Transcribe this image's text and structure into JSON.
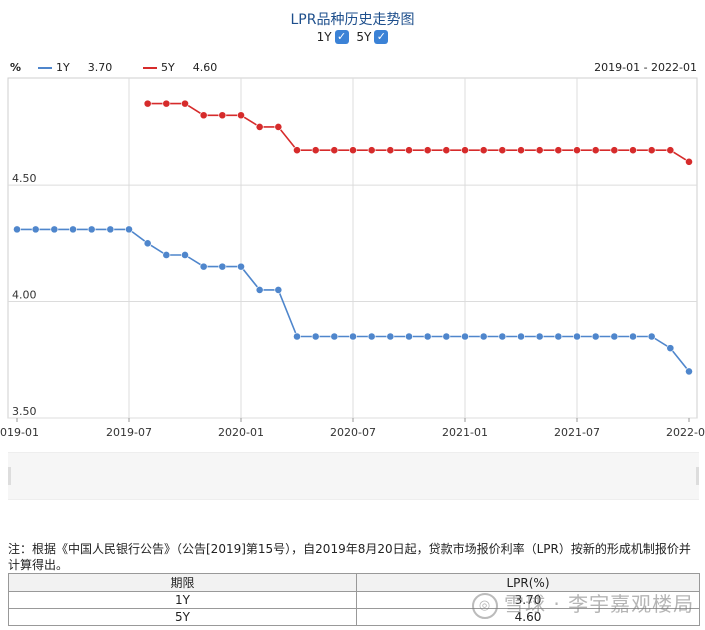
{
  "header": {
    "title": "LPR品种历史走势图",
    "toggles": [
      {
        "label": "1Y",
        "checked": true
      },
      {
        "label": "5Y",
        "checked": true
      }
    ]
  },
  "legend": {
    "unit": "%",
    "items": [
      {
        "name": "1Y",
        "value": "3.70",
        "color": "#4f86cc"
      },
      {
        "name": "5Y",
        "value": "4.60",
        "color": "#d62b2b"
      }
    ],
    "range": "2019-01 - 2022-01"
  },
  "chart_data": {
    "type": "line",
    "title": "LPR品种历史走势图",
    "xlabel": "",
    "ylabel": "%",
    "x_ticks": [
      "019-01",
      "2019-07",
      "2020-01",
      "2020-07",
      "2021-01",
      "2021-07",
      "2022-0"
    ],
    "y_ticks": [
      "3.50",
      "4.00",
      "4.50"
    ],
    "ylim": [
      3.5,
      4.96
    ],
    "x": [
      "2019-01",
      "2019-02",
      "2019-03",
      "2019-04",
      "2019-05",
      "2019-06",
      "2019-07",
      "2019-08",
      "2019-09",
      "2019-10",
      "2019-11",
      "2019-12",
      "2020-01",
      "2020-02",
      "2020-03",
      "2020-04",
      "2020-05",
      "2020-06",
      "2020-07",
      "2020-08",
      "2020-09",
      "2020-10",
      "2020-11",
      "2020-12",
      "2021-01",
      "2021-02",
      "2021-03",
      "2021-04",
      "2021-05",
      "2021-06",
      "2021-07",
      "2021-08",
      "2021-09",
      "2021-10",
      "2021-11",
      "2021-12",
      "2022-01"
    ],
    "series": [
      {
        "name": "1Y",
        "color": "#4f86cc",
        "values": [
          4.31,
          4.31,
          4.31,
          4.31,
          4.31,
          4.31,
          4.31,
          4.25,
          4.2,
          4.2,
          4.15,
          4.15,
          4.15,
          4.05,
          4.05,
          3.85,
          3.85,
          3.85,
          3.85,
          3.85,
          3.85,
          3.85,
          3.85,
          3.85,
          3.85,
          3.85,
          3.85,
          3.85,
          3.85,
          3.85,
          3.85,
          3.85,
          3.85,
          3.85,
          3.85,
          3.8,
          3.7
        ]
      },
      {
        "name": "5Y",
        "color": "#d62b2b",
        "values": [
          null,
          null,
          null,
          null,
          null,
          null,
          null,
          4.85,
          4.85,
          4.85,
          4.8,
          4.8,
          4.8,
          4.75,
          4.75,
          4.65,
          4.65,
          4.65,
          4.65,
          4.65,
          4.65,
          4.65,
          4.65,
          4.65,
          4.65,
          4.65,
          4.65,
          4.65,
          4.65,
          4.65,
          4.65,
          4.65,
          4.65,
          4.65,
          4.65,
          4.65,
          4.6
        ]
      }
    ],
    "grid": true,
    "legend": "top-left"
  },
  "note": "注：根据《中国人民银行公告》（公告[2019]第15号），自2019年8月20日起，贷款市场报价利率（LPR）按新的形成机制报价并计算得出。",
  "table": {
    "headers": [
      "期限",
      "LPR(%)"
    ],
    "rows": [
      [
        "1Y",
        "3.70"
      ],
      [
        "5Y",
        "4.60"
      ]
    ]
  },
  "watermark": "雪球 · 李宇嘉观楼局"
}
